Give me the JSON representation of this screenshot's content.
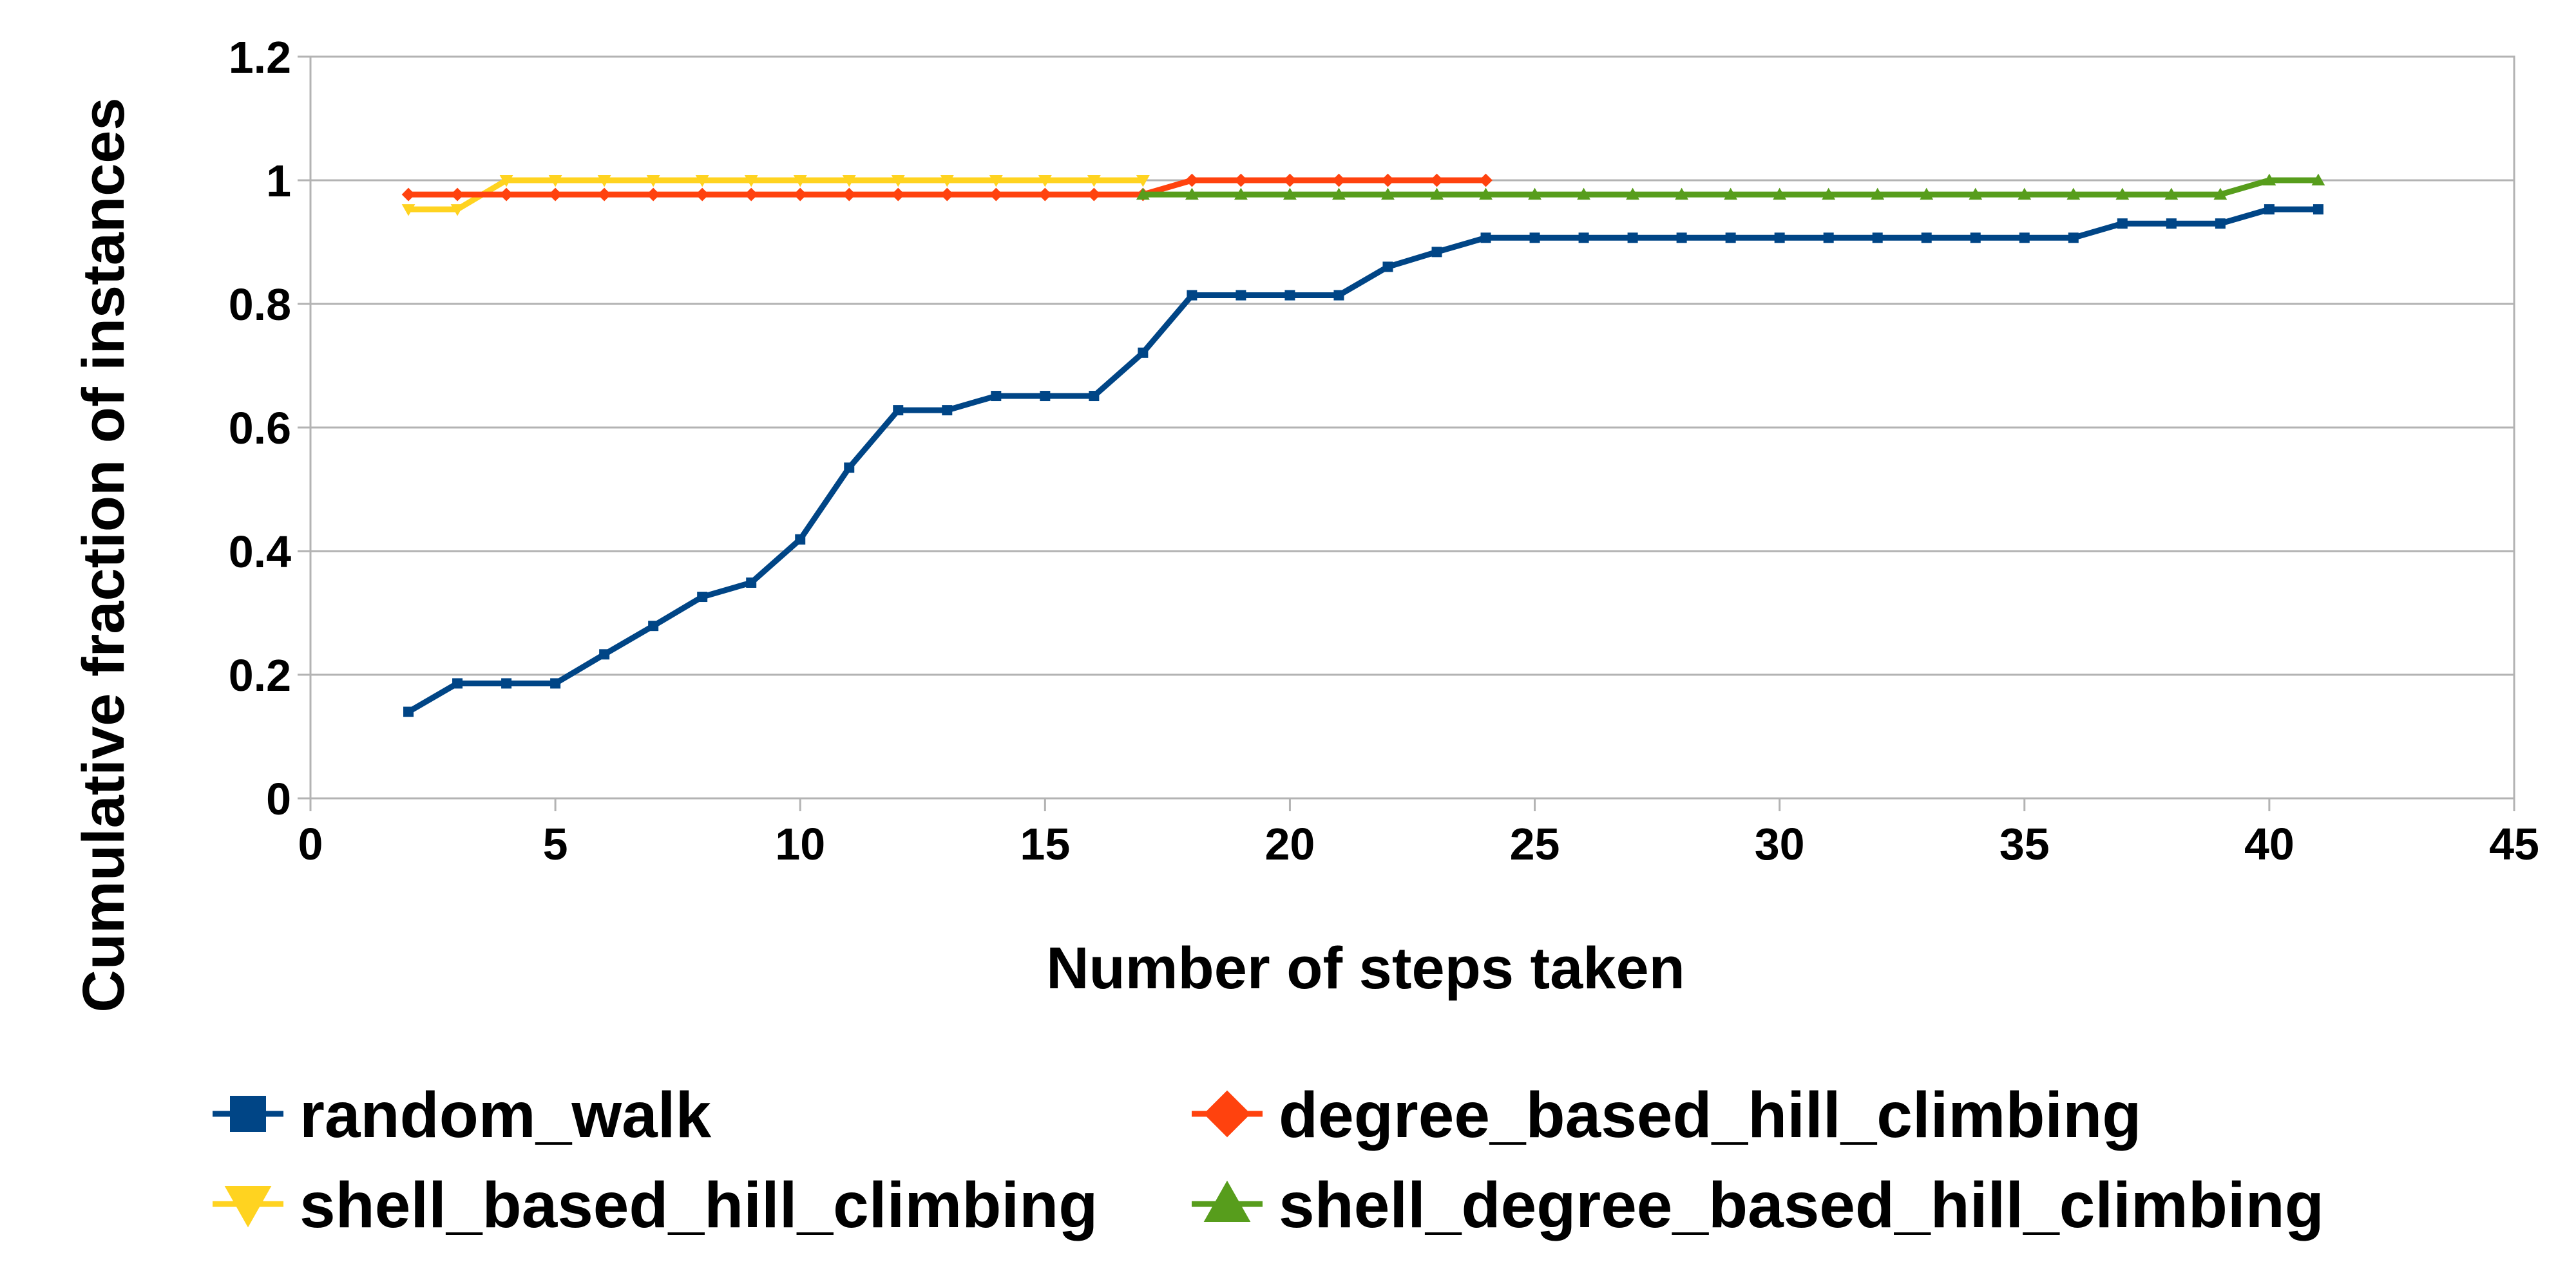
{
  "chart_data": {
    "type": "line",
    "xlabel": "Number of steps taken",
    "ylabel": "Cumulative fraction of instances",
    "xlim": [
      0,
      45
    ],
    "ylim": [
      0,
      1.2
    ],
    "xticks": [
      0,
      5,
      10,
      15,
      20,
      25,
      30,
      35,
      40,
      45
    ],
    "yticks": [
      0,
      0.2,
      0.4,
      0.6,
      0.8,
      1,
      1.2
    ],
    "xtick_labels": [
      "0",
      "5",
      "10",
      "15",
      "20",
      "25",
      "30",
      "35",
      "40",
      "45"
    ],
    "ytick_labels": [
      "0",
      "0.2",
      "0.4",
      "0.6",
      "0.8",
      "1",
      "1.2"
    ],
    "grid": "horizontal",
    "legend_position": "bottom",
    "series": [
      {
        "name": "random_walk",
        "color": "#004586",
        "marker": "square",
        "x": [
          2,
          3,
          4,
          5,
          6,
          7,
          8,
          9,
          10,
          11,
          12,
          13,
          14,
          15,
          16,
          17,
          18,
          19,
          20,
          21,
          22,
          23,
          24,
          25,
          26,
          27,
          28,
          29,
          30,
          31,
          32,
          33,
          34,
          35,
          36,
          37,
          38,
          39,
          40,
          41
        ],
        "values": [
          0.14,
          0.186,
          0.186,
          0.186,
          0.233,
          0.279,
          0.326,
          0.349,
          0.419,
          0.535,
          0.628,
          0.628,
          0.651,
          0.651,
          0.651,
          0.721,
          0.814,
          0.814,
          0.814,
          0.814,
          0.86,
          0.884,
          0.907,
          0.907,
          0.907,
          0.907,
          0.907,
          0.907,
          0.907,
          0.907,
          0.907,
          0.907,
          0.907,
          0.907,
          0.907,
          0.93,
          0.93,
          0.93,
          0.953,
          0.953
        ]
      },
      {
        "name": "degree_based_hill_climbing",
        "color": "#ff420e",
        "marker": "diamond",
        "x": [
          2,
          3,
          4,
          5,
          6,
          7,
          8,
          9,
          10,
          11,
          12,
          13,
          14,
          15,
          16,
          17,
          18,
          19,
          20,
          21,
          22,
          23,
          24
        ],
        "values": [
          0.977,
          0.977,
          0.977,
          0.977,
          0.977,
          0.977,
          0.977,
          0.977,
          0.977,
          0.977,
          0.977,
          0.977,
          0.977,
          0.977,
          0.977,
          0.977,
          1,
          1,
          1,
          1,
          1,
          1,
          1
        ]
      },
      {
        "name": "shell_based_hill_climbing",
        "color": "#ffd320",
        "marker": "triangle-down",
        "x": [
          2,
          3,
          4,
          5,
          6,
          7,
          8,
          9,
          10,
          11,
          12,
          13,
          14,
          15,
          16,
          17
        ],
        "values": [
          0.953,
          0.953,
          1,
          1,
          1,
          1,
          1,
          1,
          1,
          1,
          1,
          1,
          1,
          1,
          1,
          1
        ]
      },
      {
        "name": "shell_degree_based_hill_climbing",
        "color": "#579d1c",
        "marker": "triangle-up",
        "x": [
          17,
          18,
          19,
          20,
          21,
          22,
          23,
          24,
          25,
          26,
          27,
          28,
          29,
          30,
          31,
          32,
          33,
          34,
          35,
          36,
          37,
          38,
          39,
          40,
          41
        ],
        "values": [
          0.977,
          0.977,
          0.977,
          0.977,
          0.977,
          0.977,
          0.977,
          0.977,
          0.977,
          0.977,
          0.977,
          0.977,
          0.977,
          0.977,
          0.977,
          0.977,
          0.977,
          0.977,
          0.977,
          0.977,
          0.977,
          0.977,
          0.977,
          1,
          1
        ]
      }
    ]
  }
}
